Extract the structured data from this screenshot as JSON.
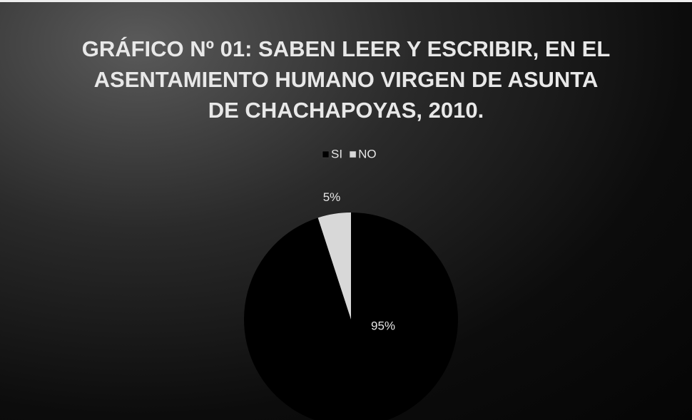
{
  "chart_data": {
    "type": "pie",
    "title": "GRÁFICO Nº 01: SABEN LEER Y ESCRIBIR, EN EL ASENTAMIENTO HUMANO VIRGEN DE ASUNTA DE CHACHAPOYAS, 2010.",
    "categories": [
      "SI",
      "NO"
    ],
    "values": [
      95,
      5
    ],
    "value_labels": [
      "95%",
      "5%"
    ],
    "colors": [
      "#000000",
      "#d8d8d8"
    ],
    "legend": "top"
  }
}
